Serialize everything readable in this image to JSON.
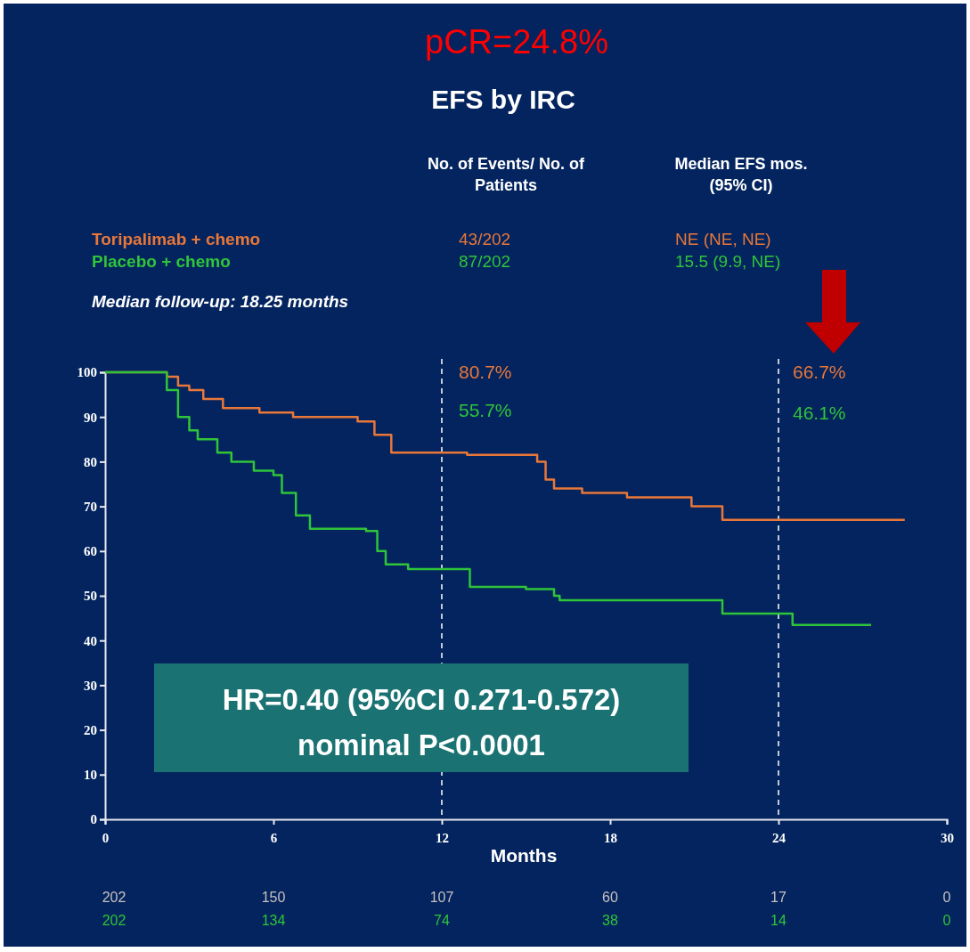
{
  "chart_data": {
    "type": "step",
    "title": "EFS by IRC",
    "xlabel": "Months",
    "xlim": [
      0,
      30
    ],
    "xticks": [
      0,
      6,
      12,
      18,
      24,
      30
    ],
    "ylim": [
      0,
      100
    ],
    "yticks": [
      0,
      10,
      20,
      30,
      40,
      50,
      60,
      70,
      80,
      90,
      100
    ],
    "grid": false,
    "legend": "top left",
    "line_style": "solid",
    "series": [
      {
        "name": "Toripalimab + chemo",
        "color": "#e8773a",
        "x": [
          0,
          2.2,
          2.6,
          3.0,
          3.5,
          4.2,
          5.5,
          6.7,
          9.0,
          9.6,
          10.2,
          12.9,
          15.4,
          15.7,
          16.0,
          17.0,
          18.6,
          20.9,
          22.0,
          28.5
        ],
        "values": [
          100,
          99,
          97,
          96,
          94,
          92,
          91,
          90,
          89,
          86,
          82,
          81.5,
          80,
          76,
          74,
          73,
          72,
          70,
          67,
          67
        ]
      },
      {
        "name": "Placebo + chemo",
        "color": "#2fc43a",
        "x": [
          0,
          2.2,
          2.6,
          3.0,
          3.3,
          4.0,
          4.5,
          5.3,
          6.0,
          6.3,
          6.8,
          7.3,
          9.3,
          9.7,
          10.0,
          10.8,
          12.6,
          13.0,
          15.0,
          16.0,
          16.2,
          21.5,
          22.0,
          24.5,
          27.3
        ],
        "values": [
          100,
          96,
          90,
          87,
          85,
          82,
          80,
          78,
          77,
          73,
          68,
          65,
          64.5,
          60,
          57,
          56,
          56,
          52,
          51.5,
          50,
          49,
          49,
          46,
          43.5,
          43.5
        ]
      }
    ],
    "ref_lines": [
      {
        "axis": "x",
        "value": 12,
        "color": "#ffffff",
        "line_style": "dashed"
      },
      {
        "axis": "x",
        "value": 24,
        "color": "#ffffff",
        "line_style": "dashed"
      }
    ],
    "annotations": [
      "pCR=24.8%",
      "No. of Events/ No. of Patients",
      "Median EFS mos. (95% CI)",
      "43/202",
      "NE (NE, NE)",
      "87/202",
      "15.5 (9.9, NE)",
      "Median follow-up: 18.25 months",
      "80.7%",
      "55.7%",
      "66.7%",
      "46.1%",
      "HR=0.40 (95%CI 0.271-0.572)",
      "nominal P<0.0001",
      "202",
      "150",
      "107",
      "60",
      "17",
      "0",
      "202",
      "134",
      "74",
      "38",
      "14",
      "0"
    ]
  }
}
